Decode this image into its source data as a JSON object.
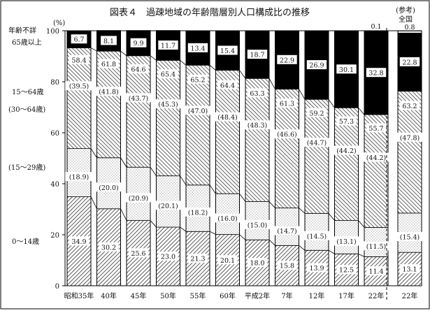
{
  "chart_data": {
    "type": "bar",
    "title": "図表４　過疎地域の年齢階層別人口構成比の推移",
    "yunit": "(%)",
    "ylim": [
      0,
      100
    ],
    "yticks": [
      0,
      20,
      40,
      60,
      80,
      100
    ],
    "reference_label": "(参考)",
    "reference_sublabel": "全国",
    "categories": [
      "昭和35年",
      "40年",
      "45年",
      "50年",
      "55年",
      "60年",
      "平成2年",
      "7年",
      "12年",
      "17年",
      "22年",
      "22年"
    ],
    "series": [
      {
        "key": "age0_14",
        "name": "0～14歳",
        "values": [
          34.9,
          30.2,
          25.6,
          23.0,
          21.3,
          20.1,
          18.0,
          15.8,
          13.9,
          12.5,
          11.4,
          13.1
        ],
        "labels": [
          "34.9",
          "30.2",
          "25.6",
          "23.0",
          "21.3",
          "20.1",
          "18.0",
          "15.8",
          "13.9",
          "12.5",
          "11.4",
          "13.1"
        ]
      },
      {
        "key": "age15_29",
        "name": "(15～29歳)",
        "values": [
          18.9,
          20.0,
          20.9,
          20.1,
          18.2,
          16.0,
          15.0,
          14.7,
          14.5,
          13.1,
          11.5,
          15.4
        ],
        "labels": [
          "(18.9)",
          "(20.0)",
          "(20.9)",
          "(20.1)",
          "(18.2)",
          "(16.0)",
          "(15.0)",
          "(14.7)",
          "(14.5)",
          "(13.1)",
          "(11.5)",
          "(15.4)"
        ]
      },
      {
        "key": "age30_64",
        "name": "(30～64歳)",
        "values": [
          39.5,
          41.8,
          43.7,
          45.3,
          47.0,
          48.4,
          48.3,
          46.6,
          44.7,
          44.2,
          44.2,
          47.8
        ],
        "labels": [
          "(39.5)",
          "(41.8)",
          "(43.7)",
          "(45.3)",
          "(47.0)",
          "(48.4)",
          "(48.3)",
          "(46.6)",
          "(44.7)",
          "(44.2)",
          "(44.2)",
          "(47.8)"
        ]
      },
      {
        "key": "age65",
        "name": "65歳以上",
        "values": [
          6.7,
          8.1,
          9.9,
          11.7,
          13.4,
          15.4,
          18.7,
          22.9,
          26.9,
          30.1,
          32.8,
          22.8
        ],
        "labels": [
          "6.7",
          "8.1",
          "9.9",
          "11.7",
          "13.4",
          "15.4",
          "18.7",
          "22.9",
          "26.9",
          "30.1",
          "32.8",
          "22.8"
        ]
      },
      {
        "key": "unknown",
        "name": "年齢不詳",
        "values": [
          0,
          0,
          0,
          0,
          0,
          0,
          0,
          0,
          0,
          0,
          0.1,
          0.8
        ],
        "labels": [
          "",
          "",
          "",
          "",
          "",
          "",
          "",
          "",
          "",
          "",
          "0.1",
          "0.8"
        ]
      }
    ],
    "group_15_64": {
      "name": "15～64歳",
      "labels": [
        "58.4",
        "61.8",
        "64.6",
        "65.4",
        "65.2",
        "64.4",
        "63.3",
        "61.3",
        "59.2",
        "57.3",
        "55.7",
        "63.2"
      ]
    }
  }
}
